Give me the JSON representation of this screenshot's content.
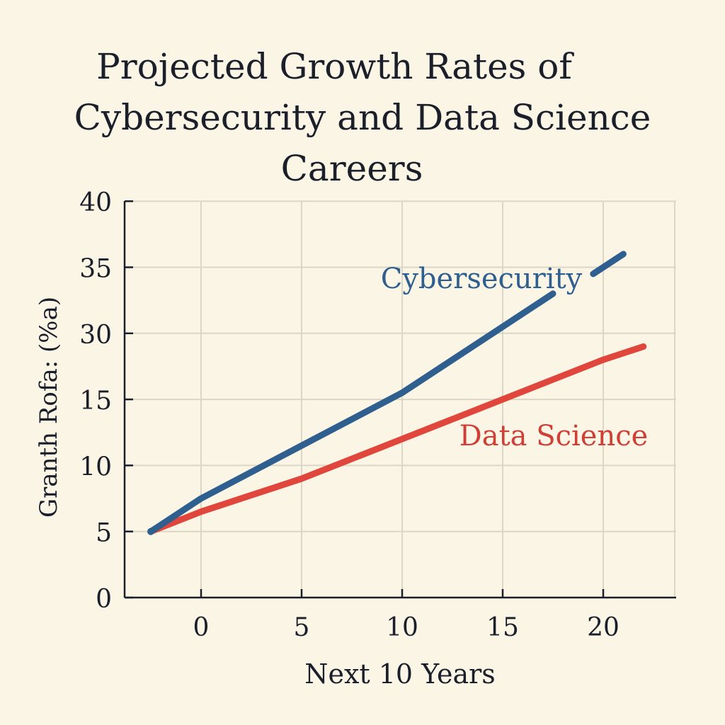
{
  "chart_data": {
    "type": "line",
    "title_lines": [
      "Projected Growth Rates of",
      "Cybersecurity and Data Science",
      "Careers"
    ],
    "xlabel": "Next 10 Years",
    "ylabel": "Granth Rofa: (%a)",
    "x_ticks": [
      0,
      5,
      10,
      15,
      20
    ],
    "y_tick_labels": [
      "0",
      "5",
      "10",
      "15",
      "30",
      "35",
      "40"
    ],
    "grid": true,
    "series": [
      {
        "name": "Cybersecurity",
        "color": "#2e5f8f",
        "x": [
          -2.5,
          0,
          5,
          10,
          15,
          17.5
        ],
        "y": [
          5,
          7.5,
          11.5,
          15.5,
          20.5,
          23
        ]
      },
      {
        "name": "Data Science",
        "color": "#e0463b",
        "x": [
          -2.5,
          0,
          5,
          10,
          15,
          20,
          22
        ],
        "y": [
          5,
          6.5,
          9,
          12,
          15,
          18,
          19
        ]
      }
    ],
    "cyber_end_segment": {
      "x": [
        19.5,
        21
      ],
      "y": [
        24.5,
        26
      ]
    }
  }
}
